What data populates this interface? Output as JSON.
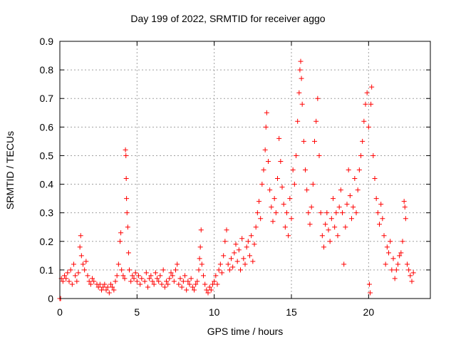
{
  "chart_data": {
    "type": "scatter",
    "title": "Day 199 of 2022, SRMTID for receiver aggo",
    "xlabel": "GPS time / hours",
    "ylabel": "SRMTID / TECUs",
    "xlim": [
      0,
      24
    ],
    "ylim": [
      0,
      0.9
    ],
    "xticks": [
      0,
      5,
      10,
      15,
      20
    ],
    "yticks": [
      0,
      0.1,
      0.2,
      0.3,
      0.4,
      0.5,
      0.6,
      0.7,
      0.8,
      0.9
    ],
    "grid": true,
    "marker": "+",
    "color": "#ff0000",
    "series": [
      {
        "name": "SRMTID",
        "points": [
          [
            0.0,
            0.0
          ],
          [
            0.05,
            0.0
          ],
          [
            0.1,
            0.07
          ],
          [
            0.2,
            0.06
          ],
          [
            0.3,
            0.08
          ],
          [
            0.4,
            0.07
          ],
          [
            0.5,
            0.09
          ],
          [
            0.6,
            0.06
          ],
          [
            0.7,
            0.1
          ],
          [
            0.8,
            0.05
          ],
          [
            0.9,
            0.12
          ],
          [
            1.0,
            0.08
          ],
          [
            1.1,
            0.06
          ],
          [
            1.2,
            0.09
          ],
          [
            1.3,
            0.18
          ],
          [
            1.35,
            0.22
          ],
          [
            1.4,
            0.15
          ],
          [
            1.5,
            0.12
          ],
          [
            1.6,
            0.1
          ],
          [
            1.7,
            0.13
          ],
          [
            1.8,
            0.08
          ],
          [
            1.9,
            0.06
          ],
          [
            2.0,
            0.05
          ],
          [
            2.1,
            0.07
          ],
          [
            2.2,
            0.06
          ],
          [
            2.4,
            0.05
          ],
          [
            2.5,
            0.04
          ],
          [
            2.6,
            0.05
          ],
          [
            2.7,
            0.03
          ],
          [
            2.8,
            0.04
          ],
          [
            2.9,
            0.05
          ],
          [
            3.0,
            0.03
          ],
          [
            3.1,
            0.04
          ],
          [
            3.2,
            0.02
          ],
          [
            3.3,
            0.05
          ],
          [
            3.4,
            0.04
          ],
          [
            3.5,
            0.03
          ],
          [
            3.6,
            0.06
          ],
          [
            3.7,
            0.08
          ],
          [
            3.8,
            0.12
          ],
          [
            3.9,
            0.2
          ],
          [
            3.95,
            0.23
          ],
          [
            4.0,
            0.1
          ],
          [
            4.1,
            0.08
          ],
          [
            4.2,
            0.07
          ],
          [
            4.25,
            0.52
          ],
          [
            4.28,
            0.5
          ],
          [
            4.3,
            0.42
          ],
          [
            4.32,
            0.35
          ],
          [
            4.35,
            0.3
          ],
          [
            4.4,
            0.25
          ],
          [
            4.45,
            0.16
          ],
          [
            4.5,
            0.1
          ],
          [
            4.6,
            0.06
          ],
          [
            4.7,
            0.08
          ],
          [
            4.8,
            0.07
          ],
          [
            4.9,
            0.09
          ],
          [
            5.0,
            0.06
          ],
          [
            5.1,
            0.08
          ],
          [
            5.2,
            0.05
          ],
          [
            5.3,
            0.07
          ],
          [
            5.5,
            0.06
          ],
          [
            5.6,
            0.09
          ],
          [
            5.7,
            0.04
          ],
          [
            5.8,
            0.07
          ],
          [
            5.9,
            0.08
          ],
          [
            6.0,
            0.06
          ],
          [
            6.1,
            0.05
          ],
          [
            6.2,
            0.09
          ],
          [
            6.3,
            0.07
          ],
          [
            6.4,
            0.06
          ],
          [
            6.5,
            0.08
          ],
          [
            6.6,
            0.05
          ],
          [
            6.7,
            0.1
          ],
          [
            6.8,
            0.04
          ],
          [
            6.9,
            0.06
          ],
          [
            7.0,
            0.05
          ],
          [
            7.1,
            0.07
          ],
          [
            7.2,
            0.09
          ],
          [
            7.3,
            0.08
          ],
          [
            7.4,
            0.06
          ],
          [
            7.5,
            0.1
          ],
          [
            7.6,
            0.12
          ],
          [
            7.7,
            0.05
          ],
          [
            7.8,
            0.07
          ],
          [
            7.9,
            0.04
          ],
          [
            8.0,
            0.06
          ],
          [
            8.1,
            0.08
          ],
          [
            8.2,
            0.03
          ],
          [
            8.3,
            0.06
          ],
          [
            8.4,
            0.05
          ],
          [
            8.5,
            0.07
          ],
          [
            8.6,
            0.04
          ],
          [
            8.7,
            0.03
          ],
          [
            8.8,
            0.05
          ],
          [
            8.9,
            0.06
          ],
          [
            9.0,
            0.1
          ],
          [
            9.05,
            0.14
          ],
          [
            9.1,
            0.18
          ],
          [
            9.15,
            0.24
          ],
          [
            9.2,
            0.12
          ],
          [
            9.3,
            0.08
          ],
          [
            9.4,
            0.05
          ],
          [
            9.5,
            0.03
          ],
          [
            9.6,
            0.02
          ],
          [
            9.7,
            0.04
          ],
          [
            9.8,
            0.03
          ],
          [
            9.9,
            0.05
          ],
          [
            10.0,
            0.06
          ],
          [
            10.1,
            0.08
          ],
          [
            10.2,
            0.05
          ],
          [
            10.3,
            0.1
          ],
          [
            10.4,
            0.12
          ],
          [
            10.5,
            0.09
          ],
          [
            10.6,
            0.15
          ],
          [
            10.7,
            0.2
          ],
          [
            10.8,
            0.24
          ],
          [
            10.9,
            0.12
          ],
          [
            11.0,
            0.1
          ],
          [
            11.1,
            0.14
          ],
          [
            11.2,
            0.11
          ],
          [
            11.3,
            0.16
          ],
          [
            11.4,
            0.19
          ],
          [
            11.5,
            0.13
          ],
          [
            11.6,
            0.17
          ],
          [
            11.7,
            0.1
          ],
          [
            11.8,
            0.21
          ],
          [
            11.9,
            0.14
          ],
          [
            12.0,
            0.12
          ],
          [
            12.1,
            0.18
          ],
          [
            12.2,
            0.2
          ],
          [
            12.3,
            0.15
          ],
          [
            12.4,
            0.22
          ],
          [
            12.5,
            0.13
          ],
          [
            12.6,
            0.19
          ],
          [
            12.7,
            0.25
          ],
          [
            12.8,
            0.3
          ],
          [
            12.9,
            0.34
          ],
          [
            13.0,
            0.28
          ],
          [
            13.1,
            0.4
          ],
          [
            13.2,
            0.45
          ],
          [
            13.3,
            0.52
          ],
          [
            13.35,
            0.6
          ],
          [
            13.4,
            0.65
          ],
          [
            13.5,
            0.48
          ],
          [
            13.6,
            0.38
          ],
          [
            13.7,
            0.32
          ],
          [
            13.8,
            0.27
          ],
          [
            13.9,
            0.35
          ],
          [
            14.0,
            0.3
          ],
          [
            14.1,
            0.42
          ],
          [
            14.2,
            0.56
          ],
          [
            14.3,
            0.48
          ],
          [
            14.4,
            0.39
          ],
          [
            14.5,
            0.33
          ],
          [
            14.6,
            0.25
          ],
          [
            14.7,
            0.3
          ],
          [
            14.8,
            0.22
          ],
          [
            14.9,
            0.35
          ],
          [
            15.0,
            0.28
          ],
          [
            15.1,
            0.45
          ],
          [
            15.2,
            0.4
          ],
          [
            15.3,
            0.5
          ],
          [
            15.4,
            0.62
          ],
          [
            15.5,
            0.72
          ],
          [
            15.55,
            0.8
          ],
          [
            15.6,
            0.83
          ],
          [
            15.65,
            0.77
          ],
          [
            15.7,
            0.68
          ],
          [
            15.8,
            0.55
          ],
          [
            15.9,
            0.45
          ],
          [
            16.0,
            0.38
          ],
          [
            16.1,
            0.3
          ],
          [
            16.2,
            0.26
          ],
          [
            16.3,
            0.32
          ],
          [
            16.4,
            0.4
          ],
          [
            16.5,
            0.55
          ],
          [
            16.6,
            0.62
          ],
          [
            16.7,
            0.7
          ],
          [
            16.8,
            0.5
          ],
          [
            16.9,
            0.3
          ],
          [
            17.0,
            0.22
          ],
          [
            17.1,
            0.18
          ],
          [
            17.2,
            0.26
          ],
          [
            17.3,
            0.3
          ],
          [
            17.4,
            0.24
          ],
          [
            17.5,
            0.2
          ],
          [
            17.6,
            0.28
          ],
          [
            17.7,
            0.35
          ],
          [
            17.8,
            0.25
          ],
          [
            17.9,
            0.3
          ],
          [
            18.0,
            0.22
          ],
          [
            18.1,
            0.32
          ],
          [
            18.2,
            0.38
          ],
          [
            18.3,
            0.3
          ],
          [
            18.4,
            0.12
          ],
          [
            18.5,
            0.25
          ],
          [
            18.6,
            0.33
          ],
          [
            18.7,
            0.45
          ],
          [
            18.8,
            0.36
          ],
          [
            18.9,
            0.28
          ],
          [
            19.0,
            0.32
          ],
          [
            19.1,
            0.42
          ],
          [
            19.2,
            0.3
          ],
          [
            19.3,
            0.38
          ],
          [
            19.4,
            0.45
          ],
          [
            19.5,
            0.5
          ],
          [
            19.6,
            0.55
          ],
          [
            19.7,
            0.62
          ],
          [
            19.8,
            0.68
          ],
          [
            19.9,
            0.72
          ],
          [
            20.0,
            0.6
          ],
          [
            20.05,
            0.05
          ],
          [
            20.1,
            0.02
          ],
          [
            20.15,
            0.68
          ],
          [
            20.2,
            0.74
          ],
          [
            20.3,
            0.5
          ],
          [
            20.4,
            0.42
          ],
          [
            20.5,
            0.35
          ],
          [
            20.6,
            0.3
          ],
          [
            20.7,
            0.26
          ],
          [
            20.8,
            0.33
          ],
          [
            20.9,
            0.28
          ],
          [
            21.0,
            0.22
          ],
          [
            21.1,
            0.12
          ],
          [
            21.2,
            0.18
          ],
          [
            21.3,
            0.16
          ],
          [
            21.4,
            0.2
          ],
          [
            21.5,
            0.1
          ],
          [
            21.6,
            0.14
          ],
          [
            21.7,
            0.07
          ],
          [
            21.8,
            0.1
          ],
          [
            21.9,
            0.12
          ],
          [
            22.0,
            0.15
          ],
          [
            22.1,
            0.16
          ],
          [
            22.2,
            0.2
          ],
          [
            22.3,
            0.34
          ],
          [
            22.35,
            0.32
          ],
          [
            22.4,
            0.28
          ],
          [
            22.5,
            0.12
          ],
          [
            22.6,
            0.1
          ],
          [
            22.7,
            0.08
          ],
          [
            22.8,
            0.06
          ],
          [
            22.9,
            0.09
          ]
        ]
      }
    ]
  }
}
